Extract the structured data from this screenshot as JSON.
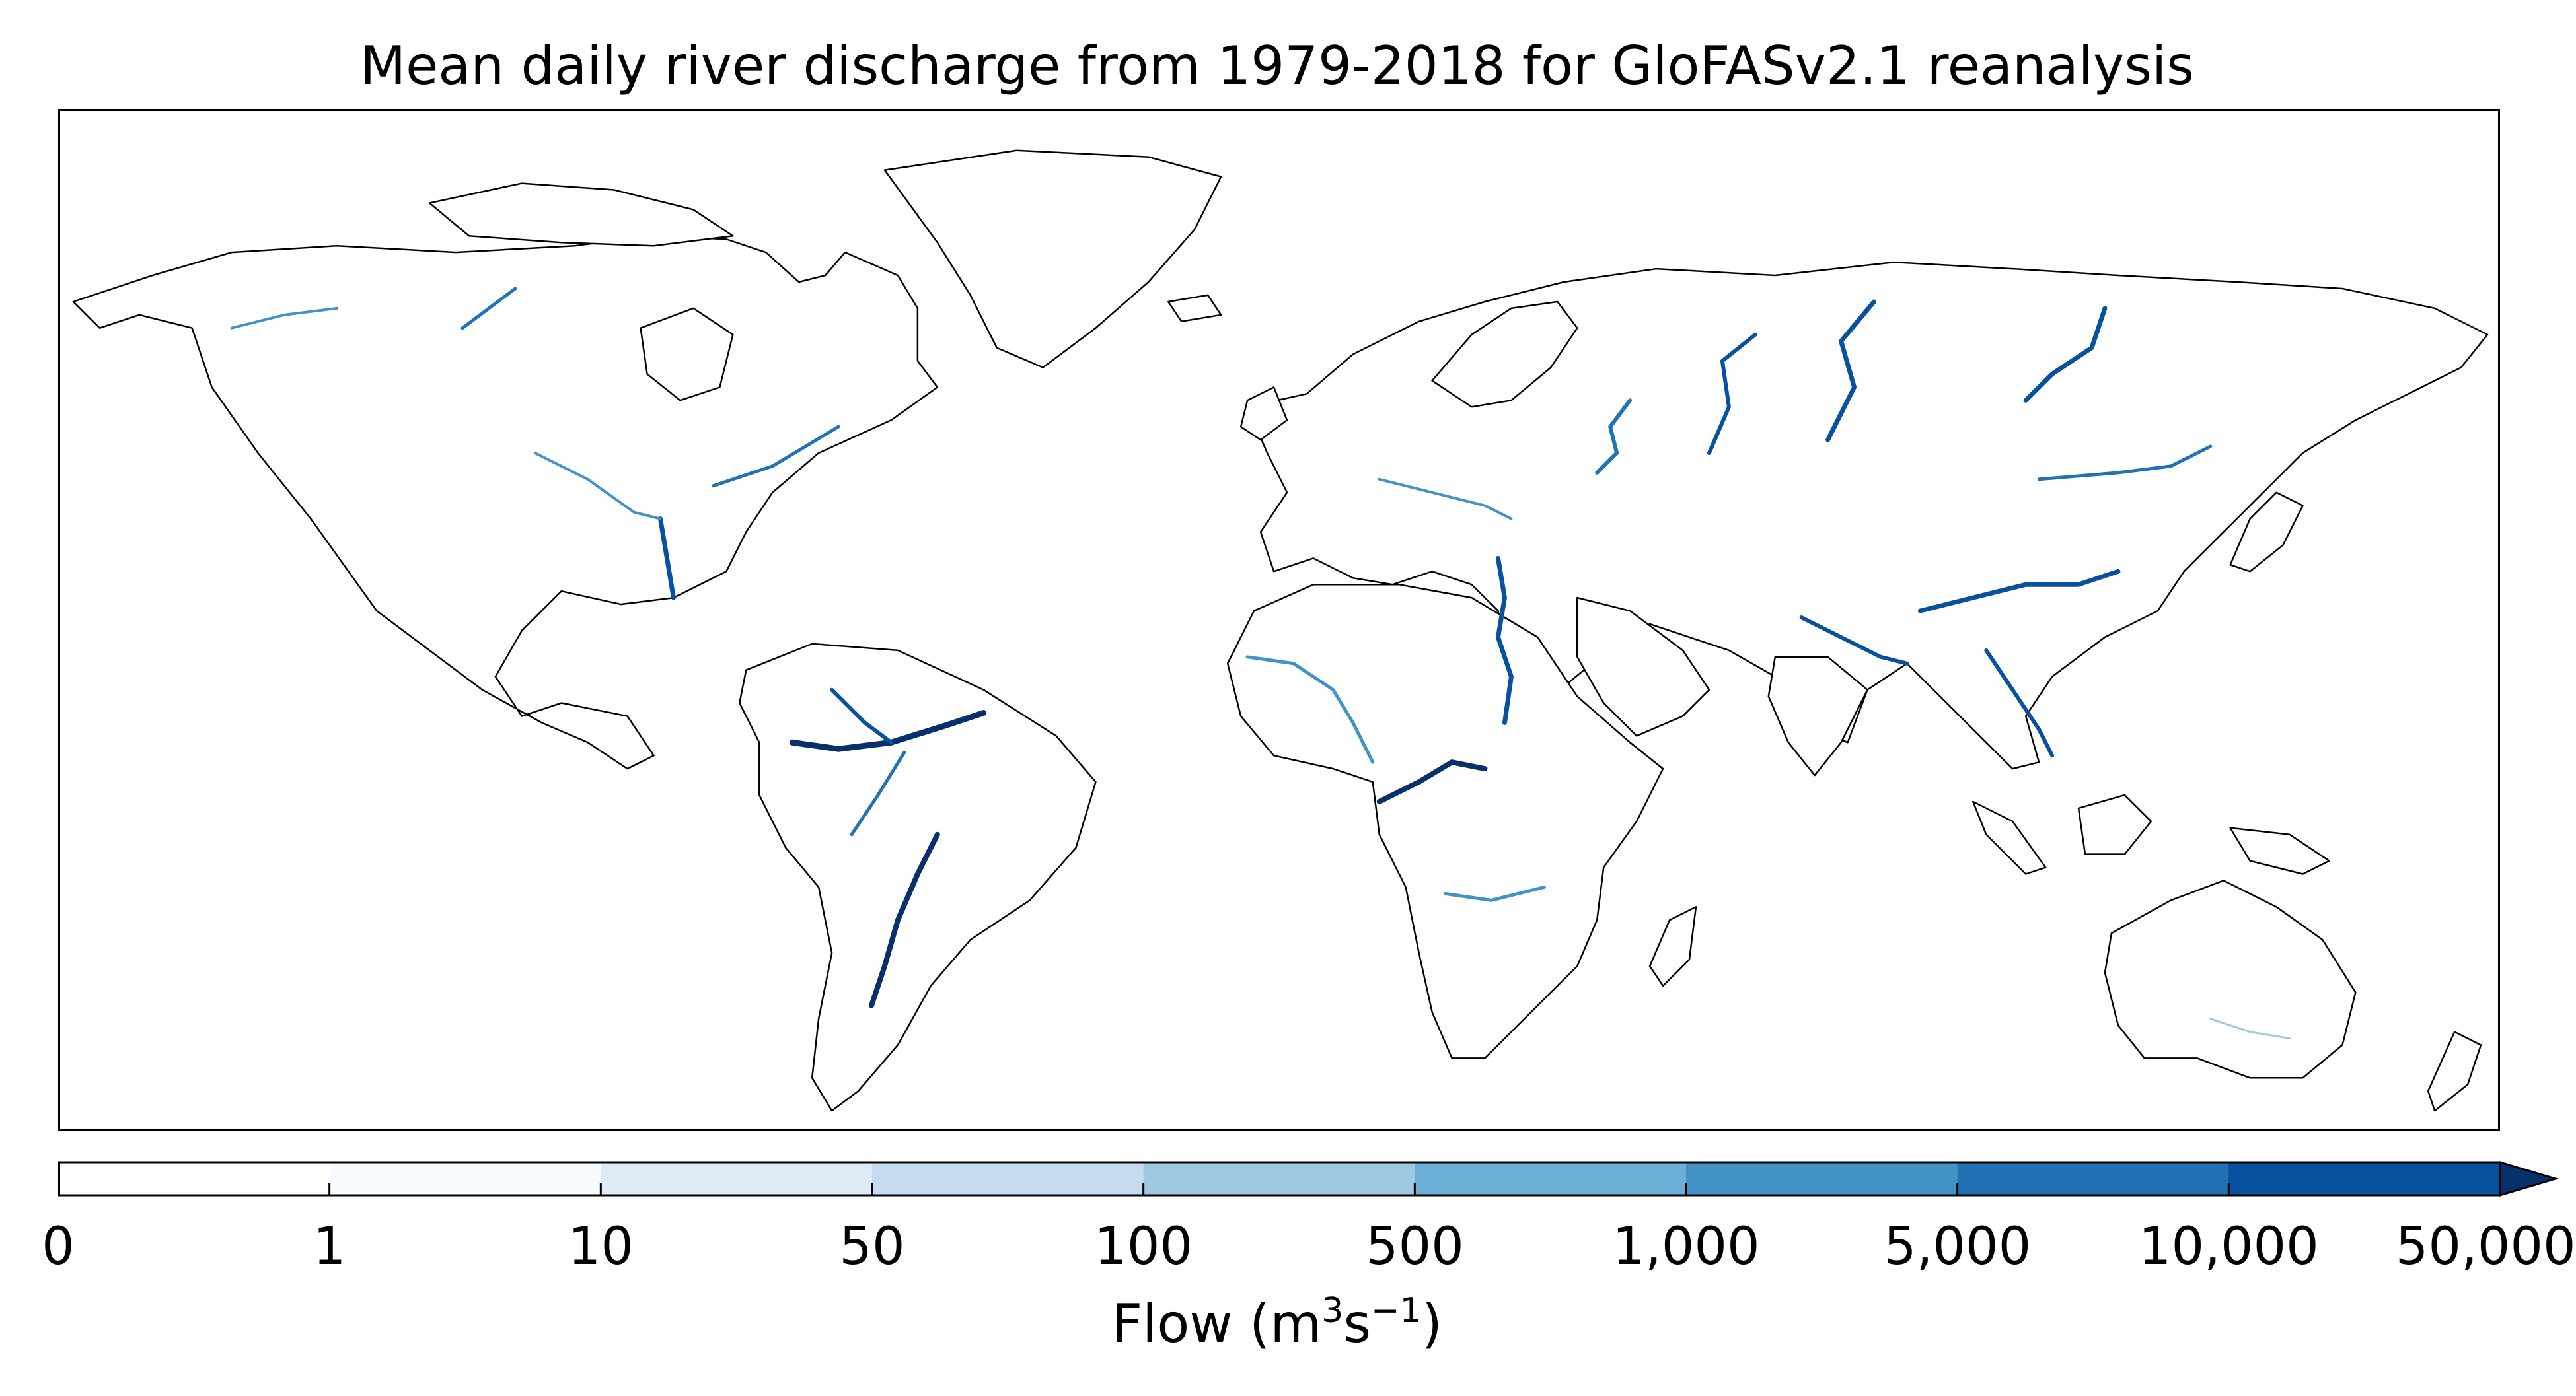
{
  "title": "Mean daily river discharge from 1979-2018 for GloFASv2.1 reanalysis",
  "colorbar": {
    "label_base": "Flow (m",
    "label_sup1": "3",
    "label_mid": "s",
    "label_sup2": "−1",
    "label_end": ")",
    "extend": "max",
    "ticks": [
      "0",
      "1",
      "10",
      "50",
      "100",
      "500",
      "1,000",
      "5,000",
      "10,000",
      "50,000"
    ],
    "colors": [
      "#ffffff",
      "#f7fbff",
      "#deebf7",
      "#c6dbef",
      "#9ecae1",
      "#6baed6",
      "#4292c6",
      "#2171b5",
      "#08519c",
      "#08306b"
    ]
  },
  "map": {
    "projection": "plate-carree",
    "land_fill": "#ffffff",
    "coastline_color": "#000000",
    "river_colormap": "Blues"
  }
}
